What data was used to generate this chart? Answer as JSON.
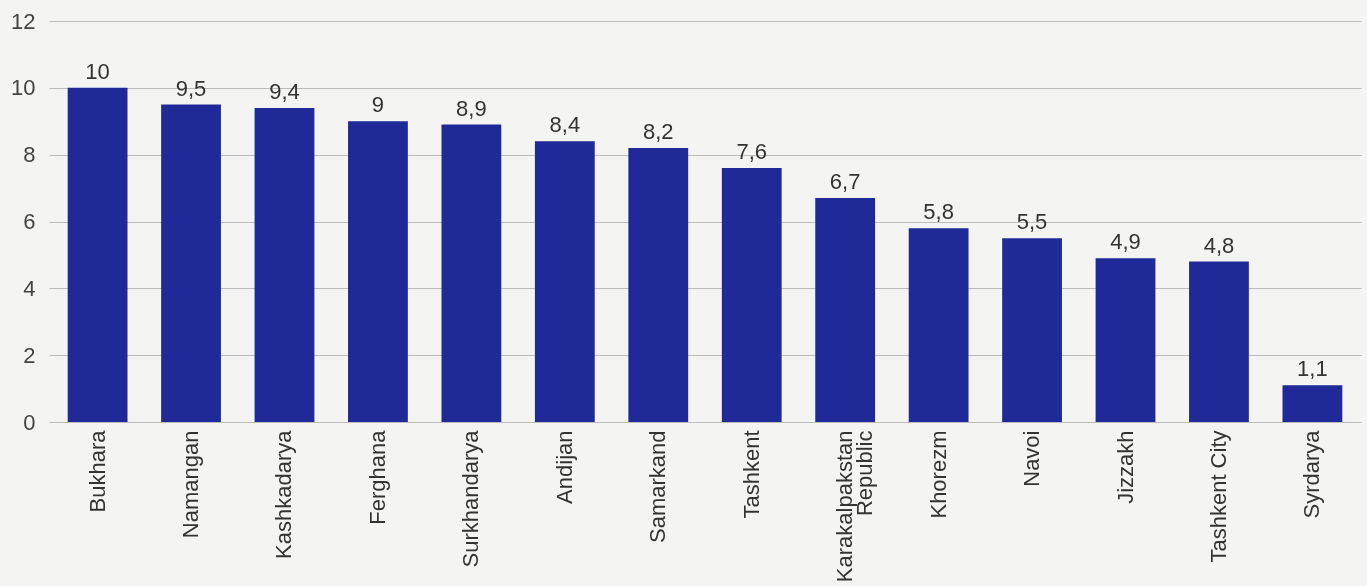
{
  "chart_data": {
    "type": "bar",
    "categories": [
      "Bukhara",
      "Namangan",
      "Kashkadarya",
      "Ferghana",
      "Surkhandarya",
      "Andijan",
      "Samarkand",
      "Tashkent",
      "Karakalpakstan Republic",
      "Khorezm",
      "Navoi",
      "Jizzakh",
      "Tashkent City",
      "Syrdarya"
    ],
    "values": [
      10,
      9.5,
      9.4,
      9,
      8.9,
      8.4,
      8.2,
      7.6,
      6.7,
      5.8,
      5.5,
      4.9,
      4.8,
      1.1
    ],
    "value_labels": [
      "10",
      "9,5",
      "9,4",
      "9",
      "8,9",
      "8,4",
      "8,2",
      "7,6",
      "6,7",
      "5,8",
      "5,5",
      "4,9",
      "4,8",
      "1,1"
    ],
    "color": "#1f2a98",
    "ylim": [
      0,
      12
    ],
    "yticks": [
      0,
      2,
      4,
      6,
      8,
      10,
      12
    ],
    "grid": "y"
  }
}
